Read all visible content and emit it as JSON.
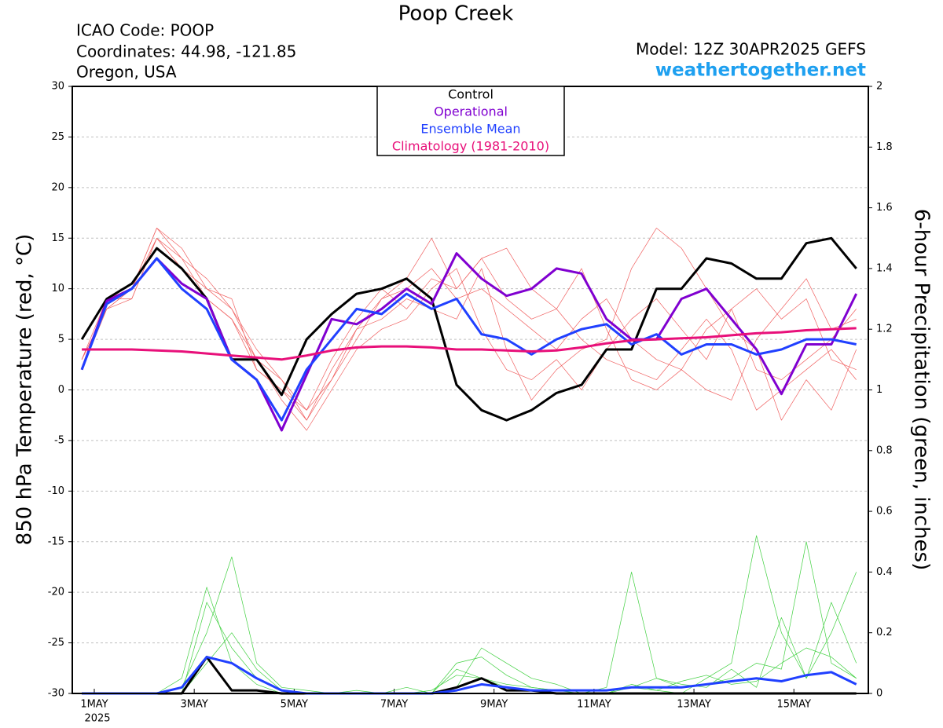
{
  "chart_data": {
    "type": "line",
    "title": "Poop Creek",
    "info_lines": [
      "ICAO Code: POOP",
      "Coordinates: 44.98, -121.85",
      "Oregon, USA"
    ],
    "model": "Model: 12Z 30APR2025 GEFS",
    "source": "weathertogether.net",
    "y_label": "850 hPa Temperature (red, °C)",
    "y2_label": "6-hour Precipitation (green, inches)",
    "x_year": "2025",
    "xlim": [
      -0.44,
      15.49
    ],
    "xticks": [
      {
        "value": 0,
        "label": "1MAY"
      },
      {
        "value": 2,
        "label": "3MAY"
      },
      {
        "value": 4,
        "label": "5MAY"
      },
      {
        "value": 6,
        "label": "7MAY"
      },
      {
        "value": 8,
        "label": "9MAY"
      },
      {
        "value": 10,
        "label": "11MAY"
      },
      {
        "value": 12,
        "label": "13MAY"
      },
      {
        "value": 14,
        "label": "15MAY"
      }
    ],
    "ylim": [
      -30,
      30
    ],
    "yticks": [
      -30,
      -25,
      -20,
      -15,
      -10,
      -5,
      0,
      5,
      10,
      15,
      20,
      25,
      30
    ],
    "y2lim": [
      0,
      2
    ],
    "y2ticks": [
      0,
      0.2,
      0.4,
      0.6,
      0.8,
      1,
      1.2,
      1.4,
      1.6,
      1.8,
      2
    ],
    "grid": true,
    "legend": "top",
    "x": [
      -0.25,
      0.25,
      0.75,
      1.25,
      1.75,
      2.25,
      2.75,
      3.25,
      3.75,
      4.25,
      4.75,
      5.25,
      5.75,
      6.25,
      6.75,
      7.25,
      7.75,
      8.25,
      8.75,
      9.25,
      9.75,
      10.25,
      10.75,
      11.25,
      11.75,
      12.25,
      12.75,
      13.25,
      13.75,
      14.25,
      14.75,
      15.25
    ],
    "series": [
      {
        "color": "#f06060",
        "values": [
          3,
          9,
          10,
          15,
          12,
          9,
          7,
          2,
          0,
          -3,
          1,
          6,
          9,
          10,
          12,
          9,
          10,
          8,
          6,
          4,
          7,
          9,
          5,
          3,
          2,
          6,
          8,
          2,
          1,
          3,
          5,
          8
        ]
      },
      {
        "color": "#f06060",
        "values": [
          2,
          8,
          9,
          15,
          13,
          11,
          8,
          4,
          1,
          -2,
          3,
          7,
          10,
          8,
          11,
          10,
          13,
          9,
          7,
          8,
          5,
          3,
          2,
          1,
          4,
          7,
          4,
          -2,
          0,
          2,
          4,
          1
        ]
      },
      {
        "color": "#f06060",
        "values": [
          3,
          8,
          10,
          16,
          14,
          10,
          8,
          3,
          -1,
          -4,
          0,
          4,
          6,
          7,
          10,
          12,
          6,
          2,
          1,
          3,
          0,
          4,
          7,
          9,
          6,
          3,
          8,
          10,
          7,
          9,
          3,
          2
        ]
      },
      {
        "color": "#f06060",
        "values": [
          2,
          9,
          9,
          15,
          12,
          10,
          9,
          2,
          0,
          -2,
          1,
          5,
          9,
          11,
          15,
          10,
          13,
          14,
          10,
          8,
          12,
          6,
          1,
          0,
          2,
          0,
          -1,
          5,
          8,
          11,
          6,
          7
        ]
      },
      {
        "color": "#f06060",
        "values": [
          3,
          8,
          10,
          16,
          13,
          9,
          7,
          3,
          1,
          -3,
          2,
          6,
          7,
          9,
          8,
          7,
          12,
          4,
          -1,
          2,
          4,
          5,
          12,
          16,
          14,
          10,
          6,
          4,
          -3,
          1,
          -2,
          4
        ]
      },
      {
        "color": "#40d040",
        "axis": "y2",
        "values": [
          0,
          0,
          0,
          0,
          0,
          0.3,
          0.15,
          0.05,
          0.01,
          0,
          0,
          0,
          0,
          0,
          0,
          0.08,
          0.05,
          0.02,
          0.01,
          0,
          0,
          0,
          0.03,
          0.01,
          0,
          0.05,
          0.1,
          0.52,
          0.2,
          0.05,
          0.3,
          0.1
        ]
      },
      {
        "color": "#40d040",
        "axis": "y2",
        "values": [
          0,
          0,
          0,
          0,
          0.02,
          0.2,
          0.45,
          0.1,
          0.02,
          0.01,
          0,
          0,
          0,
          0,
          0,
          0.02,
          0.15,
          0.1,
          0.05,
          0.03,
          0,
          0.02,
          0.4,
          0.05,
          0.02,
          0.03,
          0.05,
          0.1,
          0.08,
          0.5,
          0.1,
          0.05
        ]
      },
      {
        "color": "#40d040",
        "axis": "y2",
        "values": [
          0,
          0,
          0,
          0,
          0,
          0.1,
          0.2,
          0.08,
          0.01,
          0,
          0,
          0.01,
          0,
          0,
          0.01,
          0.06,
          0.05,
          0.03,
          0.02,
          0.01,
          0,
          0,
          0.02,
          0.05,
          0.03,
          0.02,
          0.08,
          0.02,
          0.25,
          0.05,
          0.2,
          0.4
        ]
      },
      {
        "color": "#40d040",
        "axis": "y2",
        "values": [
          0,
          0,
          0,
          0,
          0.05,
          0.35,
          0.1,
          0.03,
          0,
          0,
          0,
          0,
          0,
          0.02,
          0,
          0.1,
          0.12,
          0.06,
          0.02,
          0.01,
          0.01,
          0.01,
          0.02,
          0.01,
          0.04,
          0.06,
          0.03,
          0.04,
          0.1,
          0.15,
          0.12,
          0.05
        ]
      },
      {
        "name": "Control",
        "color": "#000000",
        "values": [
          5,
          9,
          10.5,
          14,
          12,
          9,
          3,
          3,
          -0.5,
          5,
          7.5,
          9.5,
          10,
          11,
          9,
          0.5,
          -2,
          -3,
          -2,
          -0.3,
          0.5,
          4,
          4,
          10,
          10,
          13,
          12.5,
          11,
          11,
          14.5,
          15,
          12
        ]
      },
      {
        "name": "Operational",
        "color": "#8000d0",
        "values": [
          2,
          8.8,
          10,
          13,
          10.5,
          9,
          3,
          1,
          -4,
          1.5,
          7,
          6.5,
          8,
          10,
          8.5,
          13.5,
          11,
          9.3,
          10,
          12,
          11.5,
          7,
          5,
          5,
          9,
          10,
          7,
          4,
          -0.4,
          4.5,
          4.5,
          9.5
        ]
      },
      {
        "name": "Ensemble Mean",
        "color": "#2040ff",
        "values": [
          2,
          8.5,
          10,
          13,
          10,
          8,
          3,
          1,
          -3,
          2,
          5,
          8,
          7.5,
          9.5,
          8,
          9,
          5.5,
          5,
          3.5,
          5,
          6,
          6.5,
          4.5,
          5.5,
          3.5,
          4.5,
          4.5,
          3.5,
          4,
          5,
          5,
          4.5
        ]
      },
      {
        "name": "Climatology (1981-2010)",
        "color": "#e8107a",
        "values": [
          4,
          4,
          4,
          3.9,
          3.8,
          3.6,
          3.4,
          3.2,
          3.0,
          3.4,
          3.9,
          4.2,
          4.3,
          4.3,
          4.2,
          4.0,
          4.0,
          3.9,
          3.8,
          3.9,
          4.2,
          4.6,
          4.9,
          5.0,
          5.1,
          5.2,
          5.4,
          5.6,
          5.7,
          5.9,
          6.0,
          6.1
        ]
      },
      {
        "color": "#000000",
        "axis": "y2",
        "values": [
          0,
          0,
          0,
          0,
          0,
          0.12,
          0.01,
          0.01,
          0,
          0,
          0,
          0,
          0,
          0,
          0,
          0.02,
          0.05,
          0.01,
          0.01,
          0,
          0,
          0,
          0,
          0,
          0,
          0,
          0,
          0,
          0,
          0,
          0,
          0
        ]
      },
      {
        "color": "#2040ff",
        "axis": "y2",
        "values": [
          0,
          0,
          0,
          0,
          0.02,
          0.12,
          0.1,
          0.05,
          0.01,
          0,
          0,
          0,
          0,
          0,
          0,
          0.01,
          0.03,
          0.02,
          0.01,
          0.01,
          0.01,
          0.01,
          0.02,
          0.02,
          0.02,
          0.03,
          0.04,
          0.05,
          0.04,
          0.06,
          0.07,
          0.03
        ]
      }
    ]
  }
}
